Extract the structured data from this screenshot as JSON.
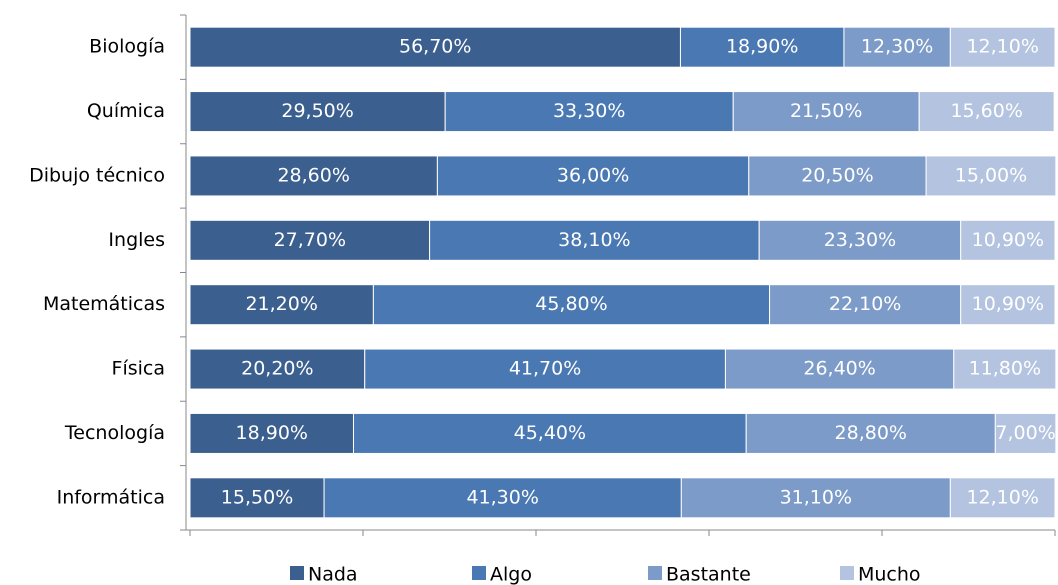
{
  "chart_data": {
    "type": "stacked-bar-horizontal",
    "categories": [
      "Biología",
      "Química",
      "Dibujo técnico",
      "Ingles",
      "Matemáticas",
      "Física",
      "Tecnología",
      "Informática"
    ],
    "series": [
      {
        "name": "Nada",
        "color": "#3b5f8e",
        "values": [
          56.7,
          29.5,
          28.6,
          27.7,
          21.2,
          20.2,
          18.9,
          15.5
        ],
        "value_labels": [
          "56,70%",
          "29,50%",
          "28,60%",
          "27,70%",
          "21,20%",
          "20,20%",
          "18,90%",
          "15,50%"
        ]
      },
      {
        "name": "Algo",
        "color": "#4a78b2",
        "values": [
          18.9,
          33.3,
          36.0,
          38.1,
          45.8,
          41.7,
          45.4,
          41.3
        ],
        "value_labels": [
          "18,90%",
          "33,30%",
          "36,00%",
          "38,10%",
          "45,80%",
          "41,70%",
          "45,40%",
          "41,30%"
        ]
      },
      {
        "name": "Bastante",
        "color": "#7c9bc8",
        "values": [
          12.3,
          21.5,
          20.5,
          23.3,
          22.1,
          26.4,
          28.8,
          31.1
        ],
        "value_labels": [
          "12,30%",
          "21,50%",
          "20,50%",
          "23,30%",
          "22,10%",
          "26,40%",
          "28,80%",
          "31,10%"
        ]
      },
      {
        "name": "Mucho",
        "color": "#b4c3df",
        "values": [
          12.1,
          15.6,
          15.0,
          10.9,
          10.9,
          11.8,
          7.0,
          12.1
        ],
        "value_labels": [
          "12,10%",
          "15,60%",
          "15,00%",
          "10,90%",
          "10,90%",
          "11,80%",
          "7,00%",
          "12,10%"
        ]
      }
    ],
    "xlim": [
      0,
      100
    ],
    "xticks": [
      0,
      20,
      40,
      60,
      80,
      100
    ],
    "legend": "bottom"
  }
}
